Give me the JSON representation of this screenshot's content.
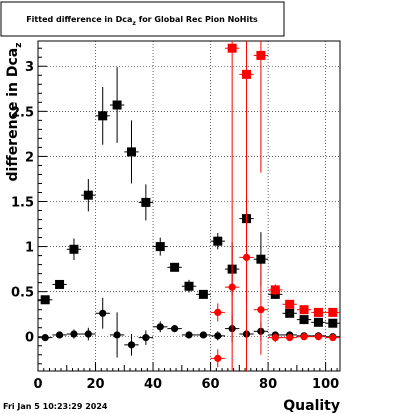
{
  "date_stamp": "Fri Jan  5 10:23:29 2024",
  "chart_data": {
    "type": "scatter",
    "title": "Fitted difference in Dcaz for Global Rec Pion NoHits",
    "title_parts": {
      "main": "Fitted difference in Dca",
      "sub": "z",
      "rest": " for Global Rec Pion NoHits"
    },
    "xlabel": "Quality",
    "ylabel": "difference in Dca",
    "ylabel_sub": "z",
    "xlim": [
      0,
      105
    ],
    "ylim": [
      -0.38,
      3.28
    ],
    "xticks": [
      0,
      20,
      40,
      60,
      80,
      100
    ],
    "yticks": [
      0,
      0.5,
      1,
      1.5,
      2,
      2.5,
      3
    ],
    "ytick_labels": [
      "0",
      "0.5",
      "1",
      "1.5",
      "2",
      "2.5",
      "3"
    ],
    "grid": true,
    "series": [
      {
        "color": "#000000",
        "marker": "square",
        "points": [
          {
            "x": 2.5,
            "y": 0.41,
            "e": 0.03
          },
          {
            "x": 7.5,
            "y": 0.58,
            "e": 0.04
          },
          {
            "x": 12.5,
            "y": 0.97,
            "e": 0.12
          },
          {
            "x": 17.5,
            "y": 1.57,
            "e": 0.18
          },
          {
            "x": 22.5,
            "y": 2.45,
            "e": 0.32
          },
          {
            "x": 27.5,
            "y": 2.57,
            "e": 0.42
          },
          {
            "x": 32.5,
            "y": 2.05,
            "e": 0.35
          },
          {
            "x": 37.5,
            "y": 1.49,
            "e": 0.2
          },
          {
            "x": 42.5,
            "y": 1.0,
            "e": 0.1
          },
          {
            "x": 47.5,
            "y": 0.77,
            "e": 0.04
          },
          {
            "x": 52.5,
            "y": 0.56,
            "e": 0.07
          },
          {
            "x": 57.5,
            "y": 0.47,
            "e": 0.02
          },
          {
            "x": 62.5,
            "y": 1.06,
            "e": 0.09
          },
          {
            "x": 67.5,
            "y": 0.75,
            "e": 0.3
          },
          {
            "x": 72.5,
            "y": 1.31,
            "e": 0.25
          },
          {
            "x": 77.5,
            "y": 0.86,
            "e": 0.3
          },
          {
            "x": 82.5,
            "y": 0.47,
            "e": 0.05
          },
          {
            "x": 87.5,
            "y": 0.26,
            "e": 0.04
          },
          {
            "x": 92.5,
            "y": 0.19,
            "e": 0.03
          },
          {
            "x": 97.5,
            "y": 0.16,
            "e": 0.03
          },
          {
            "x": 102.5,
            "y": 0.15,
            "e": 0.03
          }
        ]
      },
      {
        "color": "#000000",
        "marker": "circle",
        "points": [
          {
            "x": 2.5,
            "y": -0.01,
            "e": 0.03
          },
          {
            "x": 7.5,
            "y": 0.02,
            "e": 0.03
          },
          {
            "x": 12.5,
            "y": 0.03,
            "e": 0.05
          },
          {
            "x": 17.5,
            "y": 0.03,
            "e": 0.07
          },
          {
            "x": 22.5,
            "y": 0.26,
            "e": 0.17
          },
          {
            "x": 27.5,
            "y": 0.02,
            "e": 0.25
          },
          {
            "x": 32.5,
            "y": -0.09,
            "e": 0.12
          },
          {
            "x": 37.5,
            "y": -0.01,
            "e": 0.08
          },
          {
            "x": 42.5,
            "y": 0.11,
            "e": 0.06
          },
          {
            "x": 47.5,
            "y": 0.09,
            "e": 0.03
          },
          {
            "x": 52.5,
            "y": 0.02,
            "e": 0.04
          },
          {
            "x": 57.5,
            "y": 0.02,
            "e": 0.02
          },
          {
            "x": 62.5,
            "y": 0.01,
            "e": 0.05
          },
          {
            "x": 67.5,
            "y": 0.09,
            "e": 0.15
          },
          {
            "x": 72.5,
            "y": 0.03,
            "e": 0.05
          },
          {
            "x": 77.5,
            "y": 0.06,
            "e": 0.1
          },
          {
            "x": 82.5,
            "y": 0.02,
            "e": 0.03
          },
          {
            "x": 87.5,
            "y": 0.02,
            "e": 0.02
          },
          {
            "x": 92.5,
            "y": 0.01,
            "e": 0.02
          },
          {
            "x": 97.5,
            "y": 0.01,
            "e": 0.02
          },
          {
            "x": 102.5,
            "y": 0.0,
            "e": 0.02
          }
        ]
      },
      {
        "color": "#ff0000",
        "marker": "square",
        "points": [
          {
            "x": 67.5,
            "y": 3.2,
            "e": 4.0
          },
          {
            "x": 72.5,
            "y": 2.91,
            "e": 3.6
          },
          {
            "x": 77.5,
            "y": 3.12,
            "e": 1.3
          },
          {
            "x": 82.5,
            "y": 0.52,
            "e": 0.06
          },
          {
            "x": 87.5,
            "y": 0.36,
            "e": 0.04
          },
          {
            "x": 92.5,
            "y": 0.3,
            "e": 0.03
          },
          {
            "x": 97.5,
            "y": 0.27,
            "e": 0.03
          },
          {
            "x": 102.5,
            "y": 0.27,
            "e": 0.03
          }
        ]
      },
      {
        "color": "#ff0000",
        "marker": "circle",
        "points": [
          {
            "x": 62.5,
            "y": 0.27,
            "e": 0.1
          },
          {
            "x": 62.5,
            "y": -0.24,
            "e": 0.1
          },
          {
            "x": 67.5,
            "y": 0.55,
            "e": 0.45
          },
          {
            "x": 72.5,
            "y": 0.88,
            "e": 0.5
          },
          {
            "x": 77.5,
            "y": 0.3,
            "e": 0.5
          },
          {
            "x": 82.5,
            "y": -0.01,
            "e": 0.05
          },
          {
            "x": 87.5,
            "y": -0.01,
            "e": 0.03
          },
          {
            "x": 92.5,
            "y": 0.0,
            "e": 0.02
          },
          {
            "x": 97.5,
            "y": 0.0,
            "e": 0.02
          },
          {
            "x": 102.5,
            "y": -0.01,
            "e": 0.02
          }
        ]
      }
    ]
  }
}
